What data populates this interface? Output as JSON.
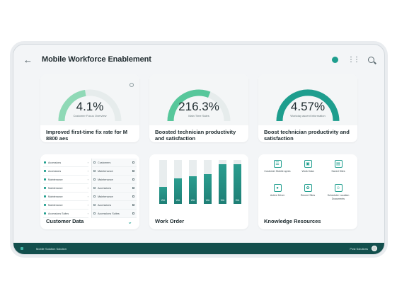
{
  "header": {
    "title": "Mobile Workforce Enablement",
    "icons": [
      "back-arrow-icon",
      "status-dot-icon",
      "more-vertical-icon",
      "search-icon"
    ]
  },
  "kpis": [
    {
      "value": "4.1%",
      "sub": "Customer Focus Overview",
      "caption": "Improved first-time fix rate for M 8800 aes",
      "progress": 0.45,
      "color": "#8fd9b6"
    },
    {
      "value": "216.3%",
      "sub": "Main Time Sales",
      "caption": "Boosted technician productivity and satisfaction",
      "progress": 0.62,
      "color": "#57c79b"
    },
    {
      "value": "4.57%",
      "sub": "Workday ascent information",
      "caption": "Boost technician productivity and satisfaction",
      "progress": 1.0,
      "color": "#1e9e8e"
    }
  ],
  "customer_data": {
    "title": "Customer Data",
    "left_rows": [
      "Accessions",
      "Accessions",
      "Maintenance",
      "Maintenance",
      "Maintenance",
      "Maintenance",
      "Accessions Suites"
    ],
    "right_rows": [
      "Customers",
      "Maintenance",
      "Maintenance",
      "Accessions",
      "Maintenance",
      "Accessions",
      "Accessions Suites"
    ]
  },
  "work_order": {
    "title": "Work Order",
    "chart_data": {
      "type": "bar",
      "categories": [
        "1",
        "2",
        "3",
        "4",
        "5",
        "6"
      ],
      "values": [
        38,
        58,
        63,
        68,
        90,
        90
      ],
      "bar_labels": [
        "WA",
        "WA",
        "WA",
        "WA",
        "WA",
        "WA"
      ],
      "ylim": [
        0,
        100
      ]
    }
  },
  "knowledge": {
    "title": "Knowledge Resources",
    "items": [
      {
        "label": "Customer Mobile apres",
        "icon": "document-icon"
      },
      {
        "label": "Work Data",
        "icon": "tablet-icon"
      },
      {
        "label": "Saved Sites",
        "icon": "notebook-icon"
      },
      {
        "label": "Active Driver",
        "icon": "lock-icon"
      },
      {
        "label": "Recent Sites",
        "icon": "gear-icon"
      },
      {
        "label": "Scheduler Location Documents",
        "icon": "person-icon"
      }
    ]
  },
  "footer": {
    "left_text": "Mobile Solution Solution",
    "right_text": "Post Solutions"
  }
}
